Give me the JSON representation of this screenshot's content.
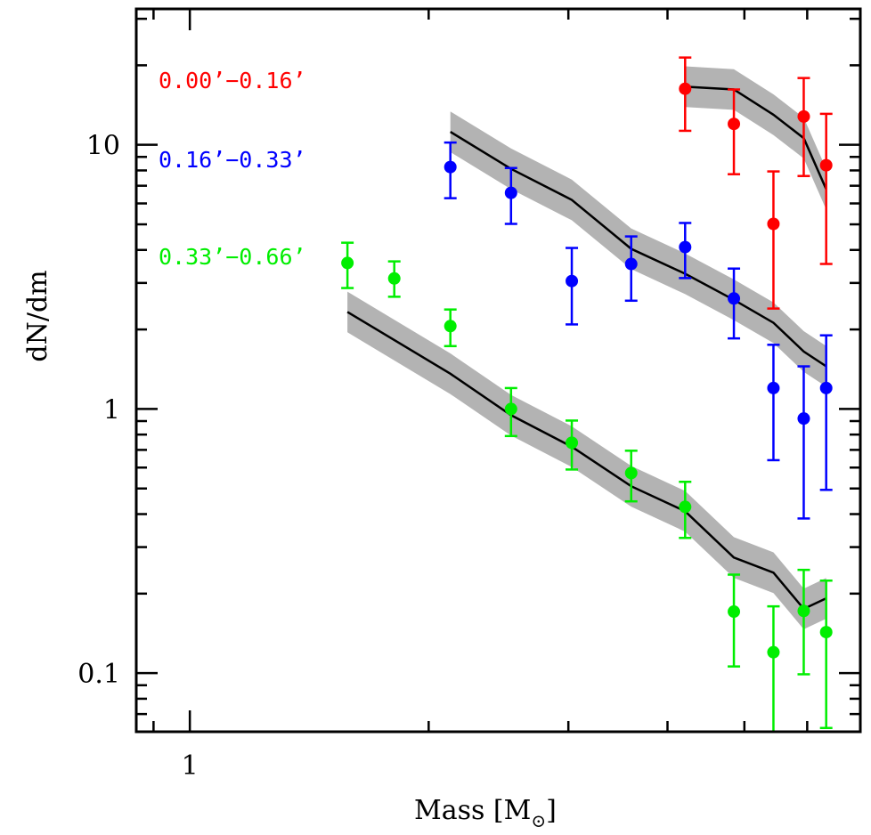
{
  "chart_data": {
    "type": "scatter",
    "title": "",
    "xlabel": "Mass [M⊙]",
    "xlabel_main": "Mass [M",
    "xlabel_sub": "⊙",
    "xlabel_close": "]",
    "ylabel": "dN/dm",
    "xscale": "log",
    "yscale": "log",
    "xlim": [
      0.856,
      7.0
    ],
    "ylim": [
      0.06,
      32.7
    ],
    "grid": false,
    "legend_placement": "top-left",
    "x_tick_labels": [
      {
        "value": 1,
        "label": "1"
      }
    ],
    "x_minor_ticks": [
      0.9,
      2,
      3,
      4,
      5,
      6,
      7
    ],
    "y_tick_labels": [
      {
        "value": 0.1,
        "label": "0.1"
      },
      {
        "value": 1,
        "label": "1"
      },
      {
        "value": 10,
        "label": "10"
      }
    ],
    "model_band_dex": 0.077,
    "colors": {
      "band": "#b3b3b3",
      "model_line": "#000000"
    },
    "series": [
      {
        "name": "0.00’−0.16’",
        "color": "#ff0000",
        "x": [
          4.21,
          4.85,
          5.44,
          5.94,
          6.34
        ],
        "y": [
          16.3,
          12.0,
          5.02,
          12.8,
          8.37
        ],
        "y_err_high": [
          21.4,
          16.2,
          7.93,
          17.9,
          13.1
        ],
        "y_err_low": [
          11.3,
          7.74,
          2.4,
          7.62,
          3.54
        ],
        "model_x": [
          4.21,
          4.85,
          5.44,
          5.94,
          6.34
        ],
        "model_y": [
          16.6,
          16.2,
          13.0,
          10.6,
          6.79
        ]
      },
      {
        "name": "0.16’−0.33’",
        "color": "#0000ff",
        "x": [
          2.13,
          2.54,
          3.03,
          3.6,
          4.21,
          4.85,
          5.44,
          5.94,
          6.34
        ],
        "y": [
          8.24,
          6.58,
          3.05,
          3.54,
          4.1,
          2.62,
          1.2,
          0.92,
          1.2
        ],
        "y_err_high": [
          10.2,
          8.17,
          4.07,
          4.5,
          5.06,
          3.4,
          1.75,
          1.45,
          1.9
        ],
        "y_err_low": [
          6.28,
          5.02,
          2.09,
          2.57,
          3.13,
          1.85,
          0.64,
          0.385,
          0.494
        ],
        "model_x": [
          2.13,
          2.54,
          3.03,
          3.6,
          4.21,
          4.85,
          5.44,
          5.94,
          6.34
        ],
        "model_y": [
          11.2,
          8.11,
          6.19,
          4.04,
          3.25,
          2.59,
          2.12,
          1.65,
          1.45
        ]
      },
      {
        "name": "0.33’−0.66’",
        "color": "#00ee00",
        "x": [
          1.58,
          1.81,
          2.13,
          2.54,
          3.03,
          3.6,
          4.21,
          4.85,
          5.44,
          5.94,
          6.34
        ],
        "y": [
          3.57,
          3.12,
          2.06,
          1.0,
          0.745,
          0.572,
          0.426,
          0.171,
          0.12,
          0.172,
          0.143
        ],
        "y_err_high": [
          4.26,
          3.62,
          2.38,
          1.2,
          0.904,
          0.695,
          0.53,
          0.236,
          0.179,
          0.246,
          0.224
        ],
        "y_err_low": [
          2.87,
          2.66,
          1.73,
          0.79,
          0.59,
          0.447,
          0.325,
          0.106,
          0.06,
          0.099,
          0.062
        ],
        "model_x": [
          1.58,
          2.13,
          2.54,
          3.03,
          3.6,
          4.21,
          4.85,
          5.44,
          5.94,
          6.34
        ],
        "model_y": [
          2.33,
          1.36,
          0.947,
          0.72,
          0.51,
          0.41,
          0.274,
          0.24,
          0.175,
          0.192
        ]
      }
    ]
  }
}
